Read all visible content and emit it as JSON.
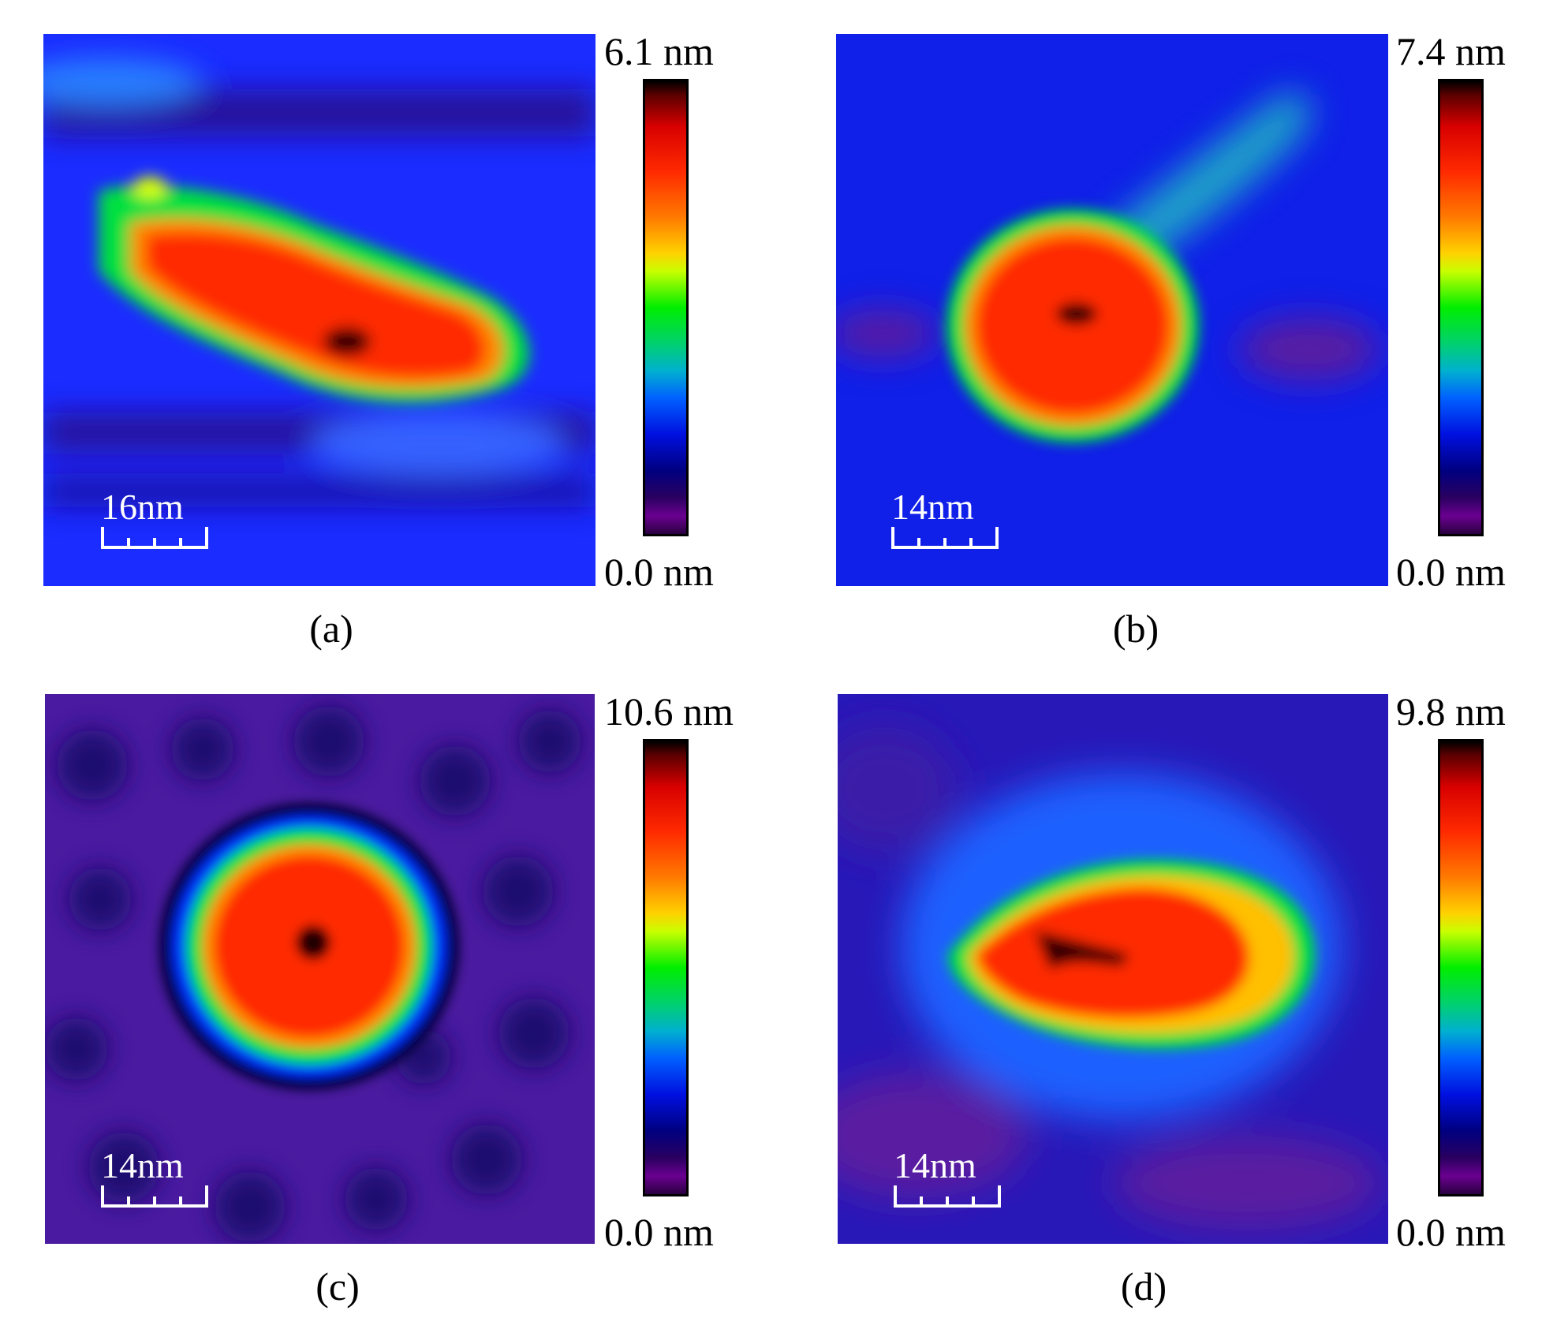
{
  "panels": [
    {
      "caption": "(a)",
      "max_label": "6.1 nm",
      "min_label": "0.0 nm",
      "scale_label": "16nm",
      "background": "#1a2cff",
      "feature_shape": "elongated-blob"
    },
    {
      "caption": "(b)",
      "max_label": "7.4 nm",
      "min_label": "0.0 nm",
      "scale_label": "14nm",
      "background": "#1020e8",
      "feature_shape": "round-blob"
    },
    {
      "caption": "(c)",
      "max_label": "10.6 nm",
      "min_label": "0.0 nm",
      "scale_label": "14nm",
      "background": "#4a1aa0",
      "feature_shape": "circular-particle"
    },
    {
      "caption": "(d)",
      "max_label": "9.8 nm",
      "min_label": "0.0 nm",
      "scale_label": "14nm",
      "background": "#2818b8",
      "feature_shape": "irregular-blob"
    }
  ],
  "colormap": [
    "#000000",
    "#d80000",
    "#ff7a00",
    "#ffd200",
    "#00ee00",
    "#00b0d0",
    "#0060ff",
    "#000080",
    "#6a0090"
  ]
}
